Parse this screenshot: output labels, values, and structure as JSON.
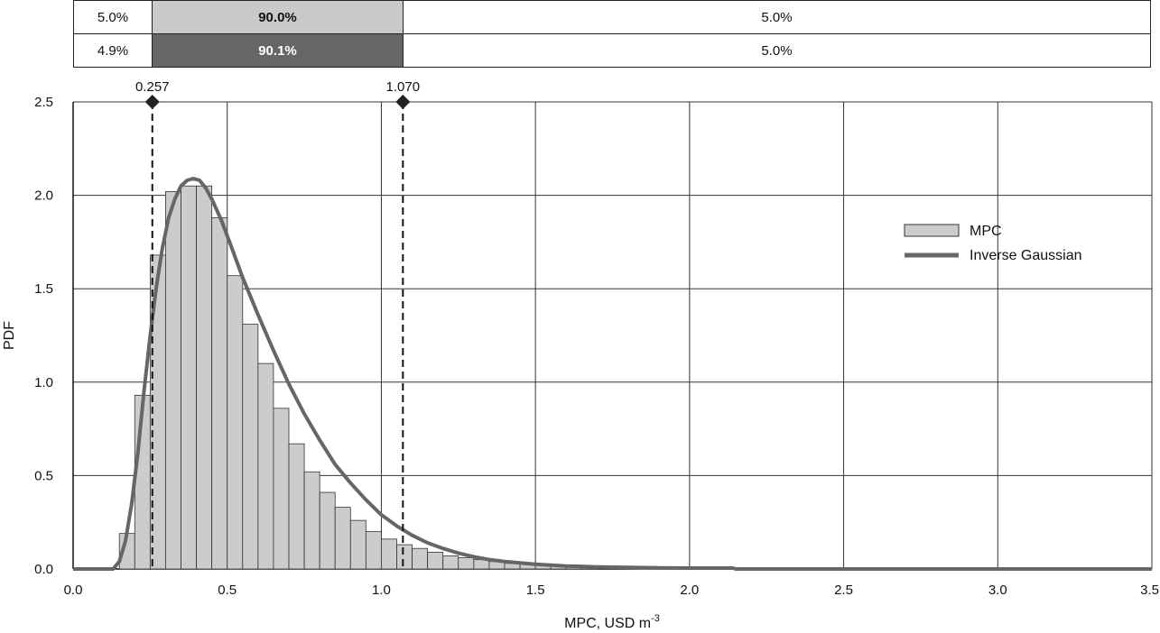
{
  "bands": [
    {
      "left": "5.0%",
      "middle": "90.0%",
      "right": "5.0%",
      "style": "light"
    },
    {
      "left": "4.9%",
      "middle": "90.1%",
      "right": "5.0%",
      "style": "dark"
    }
  ],
  "colors": {
    "bar_fill": "#cccccc",
    "bar_stroke": "#333333",
    "curve": "#666666",
    "grid": "#333333",
    "band_dark": "#666666",
    "band_light": "#c9c9c9"
  },
  "chart_data": {
    "type": "bar",
    "title": "",
    "xlabel": "MPC, USD m",
    "xlabel_superscript": "-3",
    "ylabel": "PDF",
    "xlim": [
      0.0,
      3.5
    ],
    "ylim": [
      0.0,
      2.5
    ],
    "xticks": [
      "0.0",
      "0.5",
      "1.0",
      "1.5",
      "2.0",
      "2.5",
      "3.0",
      "3.5"
    ],
    "yticks": [
      "0.0",
      "0.5",
      "1.0",
      "1.5",
      "2.0",
      "2.5"
    ],
    "grid": true,
    "legend_position": "right",
    "bin_width": 0.05,
    "bins": [
      [
        0.15,
        0.19
      ],
      [
        0.2,
        0.93
      ],
      [
        0.25,
        1.68
      ],
      [
        0.3,
        2.02
      ],
      [
        0.35,
        2.05
      ],
      [
        0.4,
        2.05
      ],
      [
        0.45,
        1.88
      ],
      [
        0.5,
        1.57
      ],
      [
        0.55,
        1.31
      ],
      [
        0.6,
        1.1
      ],
      [
        0.65,
        0.86
      ],
      [
        0.7,
        0.67
      ],
      [
        0.75,
        0.52
      ],
      [
        0.8,
        0.41
      ],
      [
        0.85,
        0.33
      ],
      [
        0.9,
        0.26
      ],
      [
        0.95,
        0.2
      ],
      [
        1.0,
        0.16
      ],
      [
        1.05,
        0.13
      ],
      [
        1.1,
        0.11
      ],
      [
        1.15,
        0.09
      ],
      [
        1.2,
        0.07
      ],
      [
        1.25,
        0.06
      ],
      [
        1.3,
        0.05
      ],
      [
        1.35,
        0.04
      ],
      [
        1.4,
        0.03
      ],
      [
        1.45,
        0.03
      ],
      [
        1.5,
        0.02
      ],
      [
        1.55,
        0.02
      ],
      [
        1.6,
        0.02
      ],
      [
        1.65,
        0.01
      ]
    ],
    "series": [
      {
        "name": "MPC",
        "kind": "histogram"
      },
      {
        "name": "Inverse Gaussian",
        "kind": "curve",
        "points": [
          [
            0.0,
            0.0
          ],
          [
            0.13,
            0.0
          ],
          [
            0.15,
            0.04
          ],
          [
            0.17,
            0.15
          ],
          [
            0.19,
            0.35
          ],
          [
            0.21,
            0.62
          ],
          [
            0.23,
            0.95
          ],
          [
            0.25,
            1.25
          ],
          [
            0.27,
            1.51
          ],
          [
            0.29,
            1.72
          ],
          [
            0.31,
            1.88
          ],
          [
            0.33,
            1.98
          ],
          [
            0.35,
            2.05
          ],
          [
            0.37,
            2.08
          ],
          [
            0.39,
            2.09
          ],
          [
            0.41,
            2.08
          ],
          [
            0.43,
            2.04
          ],
          [
            0.45,
            1.98
          ],
          [
            0.48,
            1.87
          ],
          [
            0.51,
            1.74
          ],
          [
            0.55,
            1.56
          ],
          [
            0.6,
            1.36
          ],
          [
            0.65,
            1.17
          ],
          [
            0.7,
            0.99
          ],
          [
            0.75,
            0.83
          ],
          [
            0.8,
            0.69
          ],
          [
            0.85,
            0.56
          ],
          [
            0.9,
            0.46
          ],
          [
            0.95,
            0.37
          ],
          [
            1.0,
            0.29
          ],
          [
            1.05,
            0.23
          ],
          [
            1.1,
            0.18
          ],
          [
            1.15,
            0.14
          ],
          [
            1.2,
            0.11
          ],
          [
            1.25,
            0.085
          ],
          [
            1.3,
            0.065
          ],
          [
            1.35,
            0.05
          ],
          [
            1.4,
            0.04
          ],
          [
            1.5,
            0.025
          ],
          [
            1.6,
            0.016
          ],
          [
            1.7,
            0.011
          ],
          [
            1.8,
            0.008
          ],
          [
            1.9,
            0.006
          ],
          [
            2.0,
            0.005
          ],
          [
            2.14,
            0.005
          ],
          [
            2.15,
            0.0
          ],
          [
            3.5,
            0.0
          ]
        ]
      }
    ],
    "markers": [
      {
        "label": "0.257",
        "x": 0.257
      },
      {
        "label": "1.070",
        "x": 1.07
      }
    ]
  }
}
